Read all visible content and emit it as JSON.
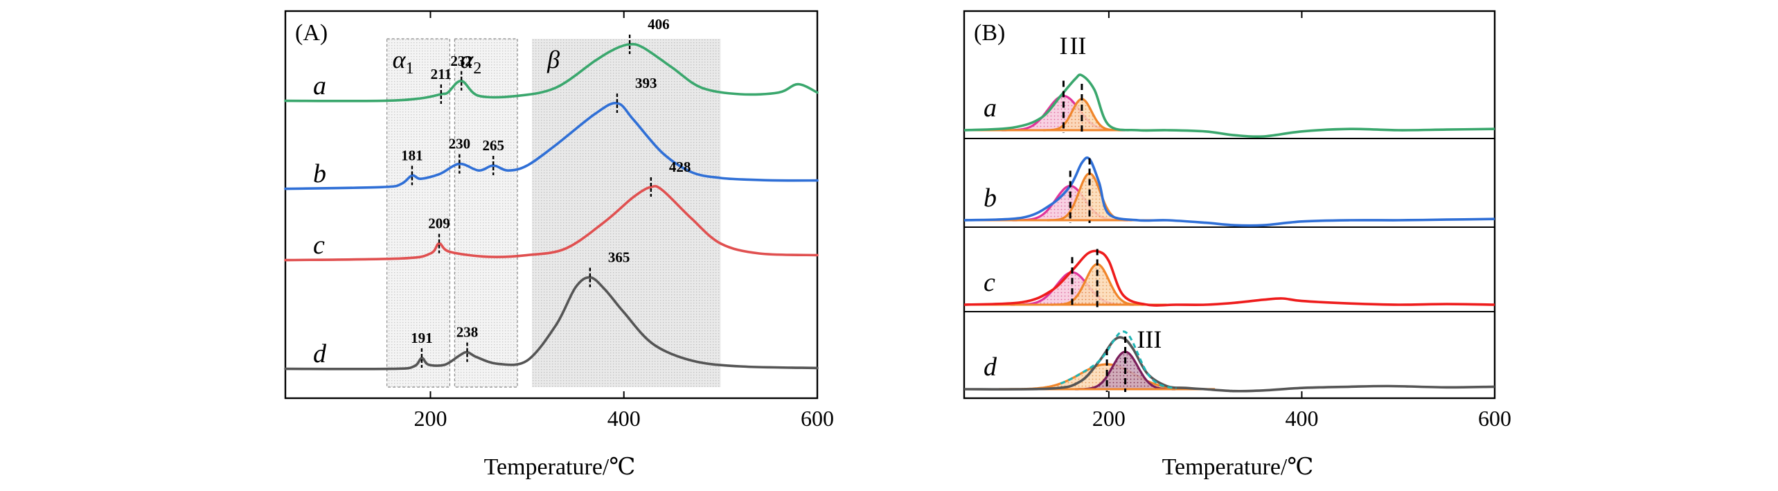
{
  "chart_data": [
    {
      "type": "line",
      "panel_label": "(A)",
      "xlabel": "Temperature/℃",
      "ylabel": "",
      "xlim": [
        50,
        600
      ],
      "xticks": [
        200,
        400,
        600
      ],
      "xtick_labels": [
        "200",
        "400",
        "600"
      ],
      "regions": [
        {
          "name": "α",
          "sub": "1",
          "x0": 155,
          "x1": 220
        },
        {
          "name": "α",
          "sub": "2",
          "x0": 225,
          "x1": 290
        },
        {
          "name": "β",
          "sub": "",
          "x0": 305,
          "x1": 500
        }
      ],
      "series": [
        {
          "name": "a",
          "color": "#3aa76d",
          "x": [
            50,
            150,
            190,
            211,
            218,
            232,
            250,
            290,
            330,
            370,
            390,
            406,
            420,
            450,
            480,
            520,
            560,
            580,
            600
          ],
          "y": [
            0.02,
            0.02,
            0.05,
            0.1,
            0.12,
            0.26,
            0.08,
            0.08,
            0.18,
            0.5,
            0.64,
            0.7,
            0.66,
            0.42,
            0.18,
            0.1,
            0.12,
            0.22,
            0.12
          ],
          "peaks": [
            {
              "x": 211,
              "label": "211"
            },
            {
              "x": 232,
              "label": "232"
            },
            {
              "x": 406,
              "label": "406"
            }
          ]
        },
        {
          "name": "b",
          "color": "#2f6fd6",
          "x": [
            50,
            150,
            170,
            181,
            190,
            210,
            230,
            250,
            265,
            280,
            300,
            330,
            370,
            393,
            410,
            440,
            470,
            500,
            530,
            560,
            600
          ],
          "y": [
            0.02,
            0.04,
            0.08,
            0.18,
            0.14,
            0.2,
            0.32,
            0.24,
            0.3,
            0.24,
            0.3,
            0.55,
            0.92,
            1.05,
            0.85,
            0.45,
            0.22,
            0.15,
            0.13,
            0.12,
            0.12
          ],
          "peaks": [
            {
              "x": 181,
              "label": "181"
            },
            {
              "x": 230,
              "label": "230"
            },
            {
              "x": 265,
              "label": "265"
            },
            {
              "x": 393,
              "label": "393"
            }
          ]
        },
        {
          "name": "c",
          "color": "#e05050",
          "x": [
            50,
            170,
            200,
            209,
            220,
            260,
            300,
            340,
            380,
            410,
            428,
            440,
            470,
            500,
            540,
            600
          ],
          "y": [
            0.02,
            0.04,
            0.1,
            0.22,
            0.12,
            0.06,
            0.08,
            0.16,
            0.48,
            0.78,
            0.9,
            0.86,
            0.52,
            0.22,
            0.1,
            0.08
          ],
          "peaks": [
            {
              "x": 209,
              "label": "209"
            },
            {
              "x": 428,
              "label": "428"
            }
          ]
        },
        {
          "name": "d",
          "color": "#555555",
          "x": [
            50,
            160,
            183,
            191,
            198,
            215,
            230,
            238,
            248,
            270,
            300,
            330,
            350,
            365,
            380,
            400,
            430,
            470,
            520,
            600
          ],
          "y": [
            0.02,
            0.02,
            0.05,
            0.15,
            0.07,
            0.07,
            0.18,
            0.22,
            0.16,
            0.08,
            0.12,
            0.55,
            1.0,
            1.12,
            0.98,
            0.7,
            0.32,
            0.12,
            0.05,
            0.03
          ],
          "peaks": [
            {
              "x": 191,
              "label": "191"
            },
            {
              "x": 238,
              "label": "238"
            },
            {
              "x": 365,
              "label": "365"
            }
          ]
        }
      ]
    },
    {
      "type": "line",
      "panel_label": "(B)",
      "xlabel": "Temperature/℃",
      "ylabel": "",
      "xlim": [
        50,
        600
      ],
      "xticks": [
        200,
        400,
        600
      ],
      "xtick_labels": [
        "200",
        "400",
        "600"
      ],
      "peak_labels": [
        {
          "label": "I",
          "series": "a",
          "x": 153
        },
        {
          "label": "II",
          "series": "a",
          "x": 168
        },
        {
          "label": "III",
          "series": "d",
          "x": 242
        }
      ],
      "series": [
        {
          "name": "a",
          "color": "#3aa76d",
          "x": [
            50,
            100,
            130,
            150,
            165,
            172,
            185,
            200,
            230,
            260,
            300,
            330,
            360,
            400,
            450,
            500,
            550,
            600
          ],
          "y": [
            0.0,
            0.04,
            0.2,
            0.55,
            0.82,
            0.88,
            0.65,
            0.08,
            0.0,
            0.0,
            -0.02,
            -0.08,
            -0.1,
            -0.02,
            0.02,
            0.0,
            0.01,
            0.02
          ],
          "fits": [
            {
              "color": "#e0339a",
              "center": 153,
              "height": 0.55,
              "width": 16
            },
            {
              "color": "#f0852a",
              "center": 172,
              "height": 0.5,
              "width": 10
            }
          ]
        },
        {
          "name": "b",
          "color": "#2f6fd6",
          "x": [
            50,
            110,
            140,
            160,
            172,
            180,
            190,
            200,
            230,
            260,
            300,
            330,
            360,
            400,
            450,
            500,
            550,
            600
          ],
          "y": [
            0.0,
            0.04,
            0.25,
            0.55,
            0.92,
            0.98,
            0.6,
            0.1,
            0.0,
            0.0,
            -0.04,
            -0.08,
            -0.08,
            -0.02,
            0.0,
            0.0,
            0.01,
            0.02
          ],
          "fits": [
            {
              "color": "#e0339a",
              "center": 160,
              "height": 0.55,
              "width": 15
            },
            {
              "color": "#f0852a",
              "center": 180,
              "height": 0.75,
              "width": 11
            }
          ]
        },
        {
          "name": "c",
          "color": "#ee1c1c",
          "x": [
            50,
            110,
            140,
            162,
            178,
            190,
            200,
            215,
            240,
            270,
            300,
            330,
            360,
            380,
            400,
            450,
            500,
            550,
            600
          ],
          "y": [
            0.0,
            0.04,
            0.22,
            0.55,
            0.82,
            0.85,
            0.7,
            0.15,
            0.0,
            0.0,
            0.0,
            0.03,
            0.08,
            0.1,
            0.06,
            0.02,
            0.0,
            0.01,
            0.0
          ],
          "fits": [
            {
              "color": "#e0339a",
              "center": 162,
              "height": 0.52,
              "width": 16
            },
            {
              "color": "#f0852a",
              "center": 188,
              "height": 0.65,
              "width": 12
            }
          ]
        },
        {
          "name": "d",
          "color": "#555555",
          "x": [
            50,
            140,
            170,
            190,
            205,
            215,
            225,
            240,
            260,
            280,
            300,
            330,
            360,
            400,
            450,
            490,
            550,
            600
          ],
          "y": [
            0.0,
            0.01,
            0.12,
            0.45,
            0.78,
            0.82,
            0.65,
            0.25,
            0.05,
            0.02,
            0.0,
            -0.03,
            -0.02,
            0.02,
            0.04,
            0.05,
            0.03,
            0.04
          ],
          "envelope_color": "#1fb5b5",
          "fits": [
            {
              "color": "#f0852a",
              "center": 198,
              "height": 0.4,
              "width": 28
            },
            {
              "color": "#7a1d5a",
              "center": 217,
              "height": 0.6,
              "width": 13
            }
          ]
        }
      ]
    }
  ]
}
